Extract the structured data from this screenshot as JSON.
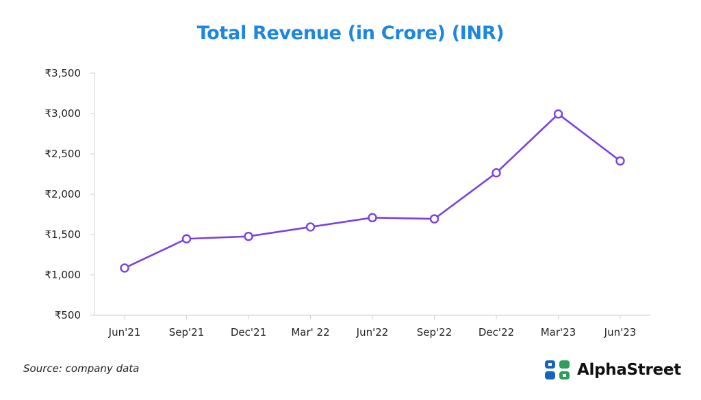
{
  "chart_data": {
    "type": "line",
    "title": "Total Revenue (in Crore) (INR)",
    "xlabel": "",
    "ylabel": "",
    "categories": [
      "Jun'21",
      "Sep'21",
      "Dec'21",
      "Mar' 22",
      "Jun'22",
      "Sep'22",
      "Dec'22",
      "Mar'23",
      "Jun'23"
    ],
    "series": [
      {
        "name": "Total Revenue",
        "values": [
          1085,
          1447,
          1477,
          1594,
          1709,
          1694,
          2265,
          2994,
          2412
        ]
      }
    ],
    "ylim": [
      500,
      3500
    ],
    "yticks": [
      500,
      1000,
      1500,
      2000,
      2500,
      3000,
      3500
    ],
    "ytick_labels": [
      "₹500",
      "₹1,000",
      "₹1,500",
      "₹2,000",
      "₹2,500",
      "₹3,000",
      "₹3,500"
    ],
    "grid": false,
    "legend": "none"
  },
  "colors": {
    "title": "#1b87e3",
    "line": "#7b3fe4",
    "marker_fill": "#ffffff",
    "axis": "#cfcfcf",
    "tick_text": "#222222",
    "logo_blue": "#1565c0",
    "logo_green": "#2e9e5b"
  },
  "footer": {
    "source": "Source: company data",
    "brand_name": "AlphaStreet",
    "brand_icon": "alphastreet-logo-icon"
  }
}
